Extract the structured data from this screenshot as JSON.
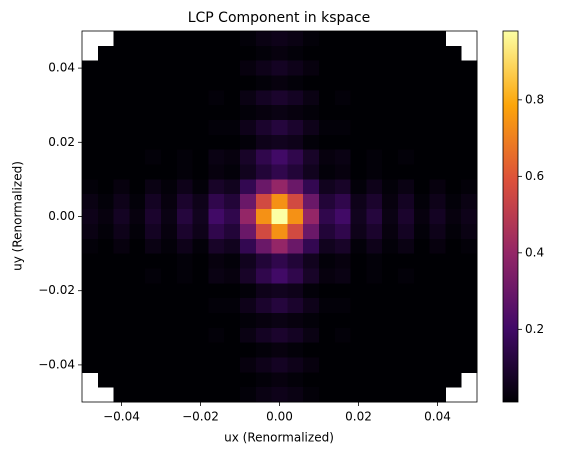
{
  "chart_data": {
    "type": "heatmap",
    "title": "LCP Component in kspace",
    "x_label": "ux (Renormalized)",
    "y_label": "uy (Renormalized)",
    "xlim": [
      -0.05,
      0.05
    ],
    "ylim": [
      -0.05,
      0.05
    ],
    "xticks": [
      {
        "value": -0.04,
        "label": "−0.04"
      },
      {
        "value": -0.02,
        "label": "−0.02"
      },
      {
        "value": 0,
        "label": "0.00"
      },
      0.02,
      0.04
    ],
    "yticks": [
      {
        "value": -0.04,
        "label": "−0.04"
      },
      {
        "value": -0.02,
        "label": "−0.02"
      },
      {
        "value": 0,
        "label": "0.00"
      },
      0.02,
      0.04
    ],
    "clim": [
      0.01,
      0.98
    ],
    "cticks": [
      0.2,
      0.4,
      0.6,
      0.8
    ],
    "colormap": [
      "#000004",
      "#420a68",
      "#932667",
      "#dd513a",
      "#fca50a",
      "#fcffa4"
    ],
    "z": [
      [
        null,
        null,
        0.01,
        0.01,
        0.01,
        0.01,
        0.01,
        0.01,
        0.01,
        0.01,
        0.02,
        0.04,
        0.05,
        0.04,
        0.02,
        0.01,
        0.01,
        0.01,
        0.01,
        0.01,
        0.01,
        0.01,
        0.01,
        null,
        null
      ],
      [
        null,
        0.01,
        0.01,
        0.01,
        0.01,
        0.01,
        0.01,
        0.01,
        0.01,
        0.01,
        0.01,
        0.02,
        0.03,
        0.02,
        0.01,
        0.01,
        0.01,
        0.01,
        0.01,
        0.01,
        0.01,
        0.01,
        0.01,
        0.01,
        null
      ],
      [
        0.01,
        0.01,
        0.01,
        0.01,
        0.01,
        0.01,
        0.01,
        0.01,
        0.01,
        0.01,
        0.03,
        0.05,
        0.07,
        0.05,
        0.03,
        0.01,
        0.01,
        0.01,
        0.01,
        0.01,
        0.01,
        0.01,
        0.01,
        0.01,
        0.01
      ],
      [
        0.01,
        0.01,
        0.01,
        0.01,
        0.01,
        0.01,
        0.01,
        0.01,
        0.01,
        0.01,
        0.01,
        0.02,
        0.03,
        0.02,
        0.01,
        0.01,
        0.01,
        0.01,
        0.01,
        0.01,
        0.01,
        0.01,
        0.01,
        0.01,
        0.01
      ],
      [
        0.01,
        0.01,
        0.01,
        0.01,
        0.01,
        0.01,
        0.01,
        0.01,
        0.02,
        0.01,
        0.04,
        0.07,
        0.09,
        0.07,
        0.04,
        0.01,
        0.02,
        0.01,
        0.01,
        0.01,
        0.01,
        0.01,
        0.01,
        0.01,
        0.01
      ],
      [
        0.01,
        0.01,
        0.01,
        0.01,
        0.01,
        0.01,
        0.01,
        0.01,
        0.01,
        0.01,
        0.02,
        0.03,
        0.04,
        0.03,
        0.02,
        0.01,
        0.01,
        0.01,
        0.01,
        0.01,
        0.01,
        0.01,
        0.01,
        0.01,
        0.01
      ],
      [
        0.01,
        0.01,
        0.01,
        0.01,
        0.01,
        0.01,
        0.01,
        0.01,
        0.02,
        0.02,
        0.05,
        0.09,
        0.12,
        0.09,
        0.05,
        0.02,
        0.02,
        0.01,
        0.01,
        0.01,
        0.01,
        0.01,
        0.01,
        0.01,
        0.01
      ],
      [
        0.01,
        0.01,
        0.01,
        0.01,
        0.01,
        0.01,
        0.01,
        0.01,
        0.01,
        0.01,
        0.02,
        0.05,
        0.06,
        0.05,
        0.02,
        0.01,
        0.01,
        0.01,
        0.01,
        0.01,
        0.01,
        0.01,
        0.01,
        0.01,
        0.01
      ],
      [
        0.01,
        0.01,
        0.01,
        0.01,
        0.02,
        0.01,
        0.02,
        0.01,
        0.04,
        0.03,
        0.08,
        0.15,
        0.2,
        0.15,
        0.08,
        0.03,
        0.04,
        0.01,
        0.02,
        0.01,
        0.02,
        0.01,
        0.01,
        0.01,
        0.01
      ],
      [
        0.01,
        0.01,
        0.01,
        0.01,
        0.01,
        0.01,
        0.02,
        0.01,
        0.03,
        0.02,
        0.06,
        0.11,
        0.15,
        0.11,
        0.06,
        0.02,
        0.03,
        0.01,
        0.02,
        0.01,
        0.01,
        0.01,
        0.01,
        0.01,
        0.01
      ],
      [
        0.02,
        0.01,
        0.03,
        0.01,
        0.04,
        0.02,
        0.05,
        0.02,
        0.08,
        0.06,
        0.16,
        0.3,
        0.4,
        0.3,
        0.16,
        0.06,
        0.08,
        0.02,
        0.05,
        0.02,
        0.04,
        0.01,
        0.03,
        0.01,
        0.02
      ],
      [
        0.04,
        0.02,
        0.05,
        0.02,
        0.07,
        0.03,
        0.09,
        0.05,
        0.15,
        0.11,
        0.3,
        0.56,
        0.74,
        0.56,
        0.3,
        0.11,
        0.15,
        0.05,
        0.09,
        0.03,
        0.07,
        0.02,
        0.05,
        0.02,
        0.04
      ],
      [
        0.05,
        0.03,
        0.07,
        0.03,
        0.09,
        0.04,
        0.12,
        0.06,
        0.2,
        0.15,
        0.4,
        0.74,
        0.98,
        0.74,
        0.4,
        0.15,
        0.2,
        0.06,
        0.12,
        0.04,
        0.09,
        0.03,
        0.07,
        0.03,
        0.05
      ],
      [
        0.04,
        0.02,
        0.05,
        0.02,
        0.07,
        0.03,
        0.09,
        0.05,
        0.15,
        0.11,
        0.3,
        0.56,
        0.74,
        0.56,
        0.3,
        0.11,
        0.15,
        0.05,
        0.09,
        0.03,
        0.07,
        0.02,
        0.05,
        0.02,
        0.04
      ],
      [
        0.02,
        0.01,
        0.03,
        0.01,
        0.04,
        0.02,
        0.05,
        0.02,
        0.08,
        0.06,
        0.16,
        0.3,
        0.4,
        0.3,
        0.16,
        0.06,
        0.08,
        0.02,
        0.05,
        0.02,
        0.04,
        0.01,
        0.03,
        0.01,
        0.02
      ],
      [
        0.01,
        0.01,
        0.01,
        0.01,
        0.01,
        0.01,
        0.02,
        0.01,
        0.03,
        0.02,
        0.06,
        0.11,
        0.15,
        0.11,
        0.06,
        0.02,
        0.03,
        0.01,
        0.02,
        0.01,
        0.01,
        0.01,
        0.01,
        0.01,
        0.01
      ],
      [
        0.01,
        0.01,
        0.01,
        0.01,
        0.02,
        0.01,
        0.02,
        0.01,
        0.04,
        0.03,
        0.08,
        0.15,
        0.2,
        0.15,
        0.08,
        0.03,
        0.04,
        0.01,
        0.02,
        0.01,
        0.02,
        0.01,
        0.01,
        0.01,
        0.01
      ],
      [
        0.01,
        0.01,
        0.01,
        0.01,
        0.01,
        0.01,
        0.01,
        0.01,
        0.01,
        0.01,
        0.02,
        0.05,
        0.06,
        0.05,
        0.02,
        0.01,
        0.01,
        0.01,
        0.01,
        0.01,
        0.01,
        0.01,
        0.01,
        0.01,
        0.01
      ],
      [
        0.01,
        0.01,
        0.01,
        0.01,
        0.01,
        0.01,
        0.01,
        0.01,
        0.02,
        0.02,
        0.05,
        0.09,
        0.12,
        0.09,
        0.05,
        0.02,
        0.02,
        0.01,
        0.01,
        0.01,
        0.01,
        0.01,
        0.01,
        0.01,
        0.01
      ],
      [
        0.01,
        0.01,
        0.01,
        0.01,
        0.01,
        0.01,
        0.01,
        0.01,
        0.01,
        0.01,
        0.02,
        0.03,
        0.04,
        0.03,
        0.02,
        0.01,
        0.01,
        0.01,
        0.01,
        0.01,
        0.01,
        0.01,
        0.01,
        0.01,
        0.01
      ],
      [
        0.01,
        0.01,
        0.01,
        0.01,
        0.01,
        0.01,
        0.01,
        0.01,
        0.02,
        0.01,
        0.04,
        0.07,
        0.09,
        0.07,
        0.04,
        0.01,
        0.02,
        0.01,
        0.01,
        0.01,
        0.01,
        0.01,
        0.01,
        0.01,
        0.01
      ],
      [
        0.01,
        0.01,
        0.01,
        0.01,
        0.01,
        0.01,
        0.01,
        0.01,
        0.01,
        0.01,
        0.01,
        0.02,
        0.03,
        0.02,
        0.01,
        0.01,
        0.01,
        0.01,
        0.01,
        0.01,
        0.01,
        0.01,
        0.01,
        0.01,
        0.01
      ],
      [
        0.01,
        0.01,
        0.01,
        0.01,
        0.01,
        0.01,
        0.01,
        0.01,
        0.01,
        0.01,
        0.03,
        0.05,
        0.07,
        0.05,
        0.03,
        0.01,
        0.01,
        0.01,
        0.01,
        0.01,
        0.01,
        0.01,
        0.01,
        0.01,
        0.01
      ],
      [
        null,
        0.01,
        0.01,
        0.01,
        0.01,
        0.01,
        0.01,
        0.01,
        0.01,
        0.01,
        0.01,
        0.02,
        0.03,
        0.02,
        0.01,
        0.01,
        0.01,
        0.01,
        0.01,
        0.01,
        0.01,
        0.01,
        0.01,
        0.01,
        null
      ],
      [
        null,
        null,
        0.01,
        0.01,
        0.01,
        0.01,
        0.01,
        0.01,
        0.01,
        0.01,
        0.02,
        0.04,
        0.05,
        0.04,
        0.02,
        0.01,
        0.01,
        0.01,
        0.01,
        0.01,
        0.01,
        0.01,
        0.01,
        null,
        null
      ]
    ]
  }
}
